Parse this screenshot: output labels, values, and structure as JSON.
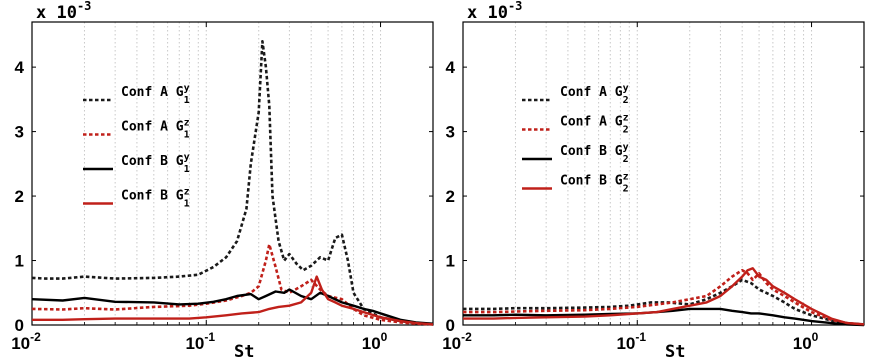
{
  "chart_data": [
    {
      "type": "line",
      "title": "",
      "xlabel": "St",
      "ylabel": "",
      "y_scale_label": "x 10",
      "y_scale_exponent": "-3",
      "x_scale": "log",
      "xlim": [
        0.01,
        2.0
      ],
      "ylim": [
        0,
        4.7
      ],
      "grid": "vertical-dotted",
      "legend_position": "top-left",
      "x_ticks": [
        {
          "value": 0.01,
          "base": "10",
          "exp": "-2"
        },
        {
          "value": 0.1,
          "base": "10",
          "exp": "-1"
        },
        {
          "value": 1,
          "base": "10",
          "exp": "0"
        }
      ],
      "y_ticks": [
        "0",
        "1",
        "2",
        "3",
        "4"
      ],
      "series": [
        {
          "name": "Conf A",
          "sub": "1",
          "sup": "y",
          "color": "#1a1a1a",
          "dash": true,
          "x": [
            0.01,
            0.012,
            0.015,
            0.02,
            0.03,
            0.05,
            0.07,
            0.09,
            0.11,
            0.13,
            0.15,
            0.17,
            0.18,
            0.2,
            0.21,
            0.22,
            0.23,
            0.24,
            0.26,
            0.28,
            0.3,
            0.33,
            0.36,
            0.4,
            0.45,
            0.5,
            0.55,
            0.6,
            0.65,
            0.7,
            0.8,
            1.0,
            1.3,
            1.6,
            2.0
          ],
          "y": [
            0.73,
            0.72,
            0.72,
            0.75,
            0.72,
            0.73,
            0.75,
            0.78,
            0.9,
            1.05,
            1.3,
            1.8,
            2.5,
            3.3,
            4.4,
            4.0,
            3.4,
            2.0,
            1.3,
            1.0,
            1.1,
            0.95,
            0.85,
            0.92,
            1.05,
            1.0,
            1.35,
            1.4,
            1.0,
            0.5,
            0.25,
            0.12,
            0.06,
            0.03,
            0.01
          ]
        },
        {
          "name": "Conf A",
          "sub": "1",
          "sup": "z",
          "color": "#c0201a",
          "dash": true,
          "x": [
            0.01,
            0.015,
            0.02,
            0.03,
            0.05,
            0.08,
            0.1,
            0.13,
            0.16,
            0.18,
            0.2,
            0.22,
            0.23,
            0.25,
            0.27,
            0.3,
            0.35,
            0.4,
            0.45,
            0.5,
            0.6,
            0.7,
            0.8,
            1.0,
            1.3,
            1.6,
            2.0
          ],
          "y": [
            0.25,
            0.24,
            0.26,
            0.24,
            0.28,
            0.3,
            0.33,
            0.38,
            0.45,
            0.5,
            0.6,
            1.0,
            1.25,
            0.9,
            0.55,
            0.5,
            0.6,
            0.7,
            0.55,
            0.45,
            0.4,
            0.25,
            0.15,
            0.08,
            0.04,
            0.02,
            0.01
          ]
        },
        {
          "name": "Conf B",
          "sub": "1",
          "sup": "y",
          "color": "#000000",
          "dash": false,
          "x": [
            0.01,
            0.015,
            0.02,
            0.03,
            0.05,
            0.07,
            0.09,
            0.11,
            0.13,
            0.15,
            0.18,
            0.2,
            0.22,
            0.25,
            0.28,
            0.3,
            0.35,
            0.4,
            0.45,
            0.5,
            0.6,
            0.7,
            0.8,
            0.9,
            1.0,
            1.3,
            1.6,
            2.0
          ],
          "y": [
            0.4,
            0.38,
            0.42,
            0.36,
            0.35,
            0.32,
            0.33,
            0.36,
            0.4,
            0.45,
            0.48,
            0.4,
            0.45,
            0.52,
            0.5,
            0.55,
            0.45,
            0.4,
            0.5,
            0.45,
            0.35,
            0.3,
            0.25,
            0.22,
            0.18,
            0.08,
            0.04,
            0.02
          ]
        },
        {
          "name": "Conf B",
          "sub": "1",
          "sup": "z",
          "color": "#c0201a",
          "dash": false,
          "x": [
            0.01,
            0.015,
            0.02,
            0.03,
            0.05,
            0.08,
            0.1,
            0.13,
            0.16,
            0.2,
            0.23,
            0.26,
            0.3,
            0.35,
            0.4,
            0.43,
            0.46,
            0.5,
            0.55,
            0.6,
            0.7,
            0.8,
            1.0,
            1.3,
            1.6,
            2.0
          ],
          "y": [
            0.08,
            0.08,
            0.09,
            0.1,
            0.1,
            0.1,
            0.12,
            0.15,
            0.18,
            0.2,
            0.25,
            0.28,
            0.3,
            0.35,
            0.5,
            0.75,
            0.55,
            0.4,
            0.35,
            0.3,
            0.25,
            0.2,
            0.12,
            0.06,
            0.03,
            0.01
          ]
        }
      ]
    },
    {
      "type": "line",
      "title": "",
      "xlabel": "St",
      "ylabel": "",
      "y_scale_label": "x 10",
      "y_scale_exponent": "-3",
      "x_scale": "log",
      "xlim": [
        0.01,
        2.0
      ],
      "ylim": [
        0,
        4.7
      ],
      "grid": "vertical-dotted",
      "legend_position": "top-left",
      "x_ticks": [
        {
          "value": 0.01,
          "base": "10",
          "exp": "-2"
        },
        {
          "value": 0.1,
          "base": "10",
          "exp": "-1"
        },
        {
          "value": 1,
          "base": "10",
          "exp": "0"
        }
      ],
      "y_ticks": [
        "0",
        "1",
        "2",
        "3",
        "4"
      ],
      "series": [
        {
          "name": "Conf A",
          "sub": "2",
          "sup": "y",
          "color": "#1a1a1a",
          "dash": true,
          "x": [
            0.01,
            0.015,
            0.02,
            0.03,
            0.05,
            0.07,
            0.09,
            0.12,
            0.15,
            0.2,
            0.25,
            0.3,
            0.35,
            0.4,
            0.45,
            0.5,
            0.6,
            0.7,
            0.8,
            1.0,
            1.3,
            1.6,
            2.0
          ],
          "y": [
            0.25,
            0.25,
            0.26,
            0.26,
            0.27,
            0.28,
            0.3,
            0.35,
            0.35,
            0.32,
            0.4,
            0.5,
            0.6,
            0.7,
            0.65,
            0.55,
            0.45,
            0.35,
            0.25,
            0.15,
            0.07,
            0.03,
            0.01
          ]
        },
        {
          "name": "Conf A",
          "sub": "2",
          "sup": "z",
          "color": "#c0201a",
          "dash": true,
          "x": [
            0.01,
            0.015,
            0.02,
            0.03,
            0.05,
            0.07,
            0.1,
            0.13,
            0.16,
            0.2,
            0.25,
            0.3,
            0.35,
            0.4,
            0.43,
            0.46,
            0.5,
            0.55,
            0.6,
            0.7,
            0.8,
            1.0,
            1.3,
            1.6,
            2.0
          ],
          "y": [
            0.2,
            0.2,
            0.21,
            0.22,
            0.23,
            0.25,
            0.28,
            0.32,
            0.35,
            0.4,
            0.45,
            0.6,
            0.75,
            0.85,
            0.8,
            0.7,
            0.8,
            0.65,
            0.55,
            0.45,
            0.35,
            0.2,
            0.08,
            0.03,
            0.01
          ]
        },
        {
          "name": "Conf B",
          "sub": "2",
          "sup": "y",
          "color": "#000000",
          "dash": false,
          "x": [
            0.01,
            0.015,
            0.02,
            0.03,
            0.05,
            0.07,
            0.1,
            0.13,
            0.16,
            0.2,
            0.25,
            0.3,
            0.35,
            0.4,
            0.45,
            0.5,
            0.6,
            0.7,
            0.8,
            1.0,
            1.3,
            1.6,
            2.0
          ],
          "y": [
            0.15,
            0.15,
            0.16,
            0.15,
            0.16,
            0.17,
            0.18,
            0.2,
            0.22,
            0.25,
            0.25,
            0.25,
            0.22,
            0.2,
            0.18,
            0.18,
            0.15,
            0.12,
            0.1,
            0.06,
            0.03,
            0.01,
            0.0
          ]
        },
        {
          "name": "Conf B",
          "sub": "2",
          "sup": "z",
          "color": "#c0201a",
          "dash": false,
          "x": [
            0.01,
            0.015,
            0.02,
            0.03,
            0.05,
            0.07,
            0.1,
            0.13,
            0.16,
            0.2,
            0.25,
            0.3,
            0.35,
            0.4,
            0.43,
            0.46,
            0.5,
            0.55,
            0.6,
            0.7,
            0.8,
            1.0,
            1.3,
            1.6,
            2.0
          ],
          "y": [
            0.1,
            0.1,
            0.11,
            0.12,
            0.13,
            0.15,
            0.18,
            0.2,
            0.25,
            0.3,
            0.35,
            0.45,
            0.6,
            0.75,
            0.85,
            0.88,
            0.75,
            0.7,
            0.6,
            0.5,
            0.4,
            0.25,
            0.1,
            0.03,
            0.01
          ]
        }
      ]
    }
  ]
}
